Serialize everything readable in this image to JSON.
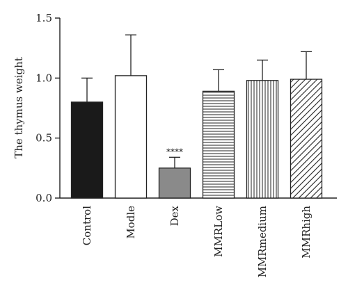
{
  "chart_data": {
    "type": "bar",
    "title": "",
    "xlabel": "",
    "ylabel": "The thymus weight",
    "ylim": [
      0,
      1.5
    ],
    "yticks": [
      0.0,
      0.5,
      1.0,
      1.5
    ],
    "ytick_labels": [
      "0.0",
      "0.5",
      "1.0",
      "1.5"
    ],
    "categories": [
      "Control",
      "Modle",
      "Dex",
      "MMRLow",
      "MMRmedium",
      "MMRhigh"
    ],
    "values": [
      0.8,
      1.02,
      0.25,
      0.89,
      0.98,
      0.99
    ],
    "error_upper": [
      0.2,
      0.34,
      0.09,
      0.18,
      0.17,
      0.23
    ],
    "fills": [
      "solid-black",
      "white",
      "solid-gray",
      "horizontal-lines",
      "vertical-lines",
      "diagonal-lines"
    ],
    "colors": {
      "black": "#1a1a1a",
      "gray": "#8a8a8a",
      "outline": "#222222"
    },
    "annotations": [
      {
        "category": "Dex",
        "text": "****"
      }
    ],
    "grid": false,
    "legend": "none"
  }
}
